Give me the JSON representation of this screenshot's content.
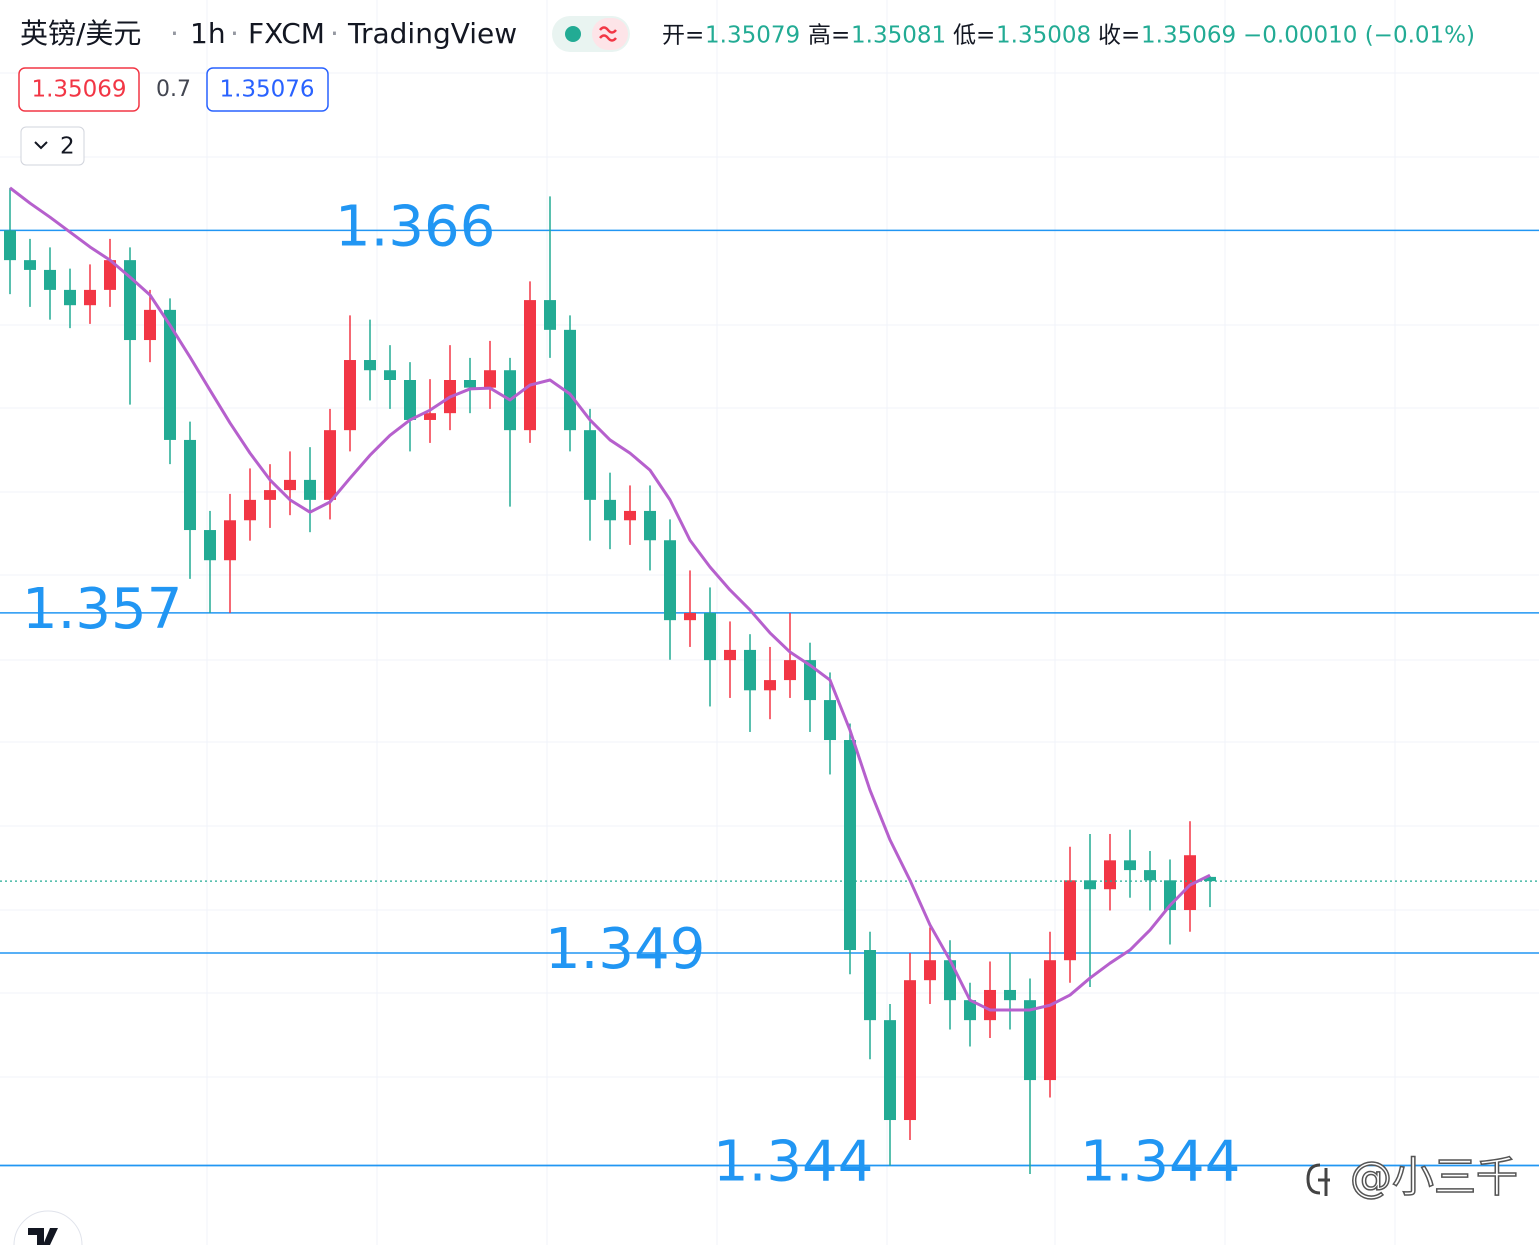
{
  "header": {
    "symbol": "英镑/美元",
    "interval": "1h",
    "exchange": "FXCM",
    "platform": "TradingView",
    "ohlc": [
      {
        "label": "开=",
        "value": "1.35079"
      },
      {
        "label": "高=",
        "value": "1.35081"
      },
      {
        "label": "低=",
        "value": "1.35008"
      },
      {
        "label": "收=",
        "value": "1.35069"
      }
    ],
    "change": "−0.00010 (−0.01%)",
    "bid": "1.35069",
    "spread": "0.7",
    "ask": "1.35076",
    "indicator_count": "2"
  },
  "watermark": "@小三千",
  "chart_data": {
    "type": "candlestick",
    "ylim": [
      1.34213,
      1.37142
    ],
    "up_color": "#f23645",
    "down_color": "#22ab94",
    "ma_color": "#b660cd",
    "level_color": "#2196f3",
    "open": [
      1.366,
      1.3653,
      1.36507,
      1.3646,
      1.36424,
      1.3646,
      1.3653,
      1.36342,
      1.36413,
      1.36107,
      1.35895,
      1.35824,
      1.35918,
      1.35966,
      1.35989,
      1.36013,
      1.35966,
      1.3613,
      1.36295,
      1.36271,
      1.36248,
      1.36154,
      1.3617,
      1.36248,
      1.3623,
      1.36271,
      1.3613,
      1.36436,
      1.36366,
      1.3613,
      1.35966,
      1.35918,
      1.3594,
      1.35871,
      1.35683,
      1.357,
      1.35589,
      1.35613,
      1.35518,
      1.35542,
      1.35589,
      1.35495,
      1.35401,
      1.34907,
      1.34742,
      1.34507,
      1.34836,
      1.34883,
      1.34789,
      1.34742,
      1.34813,
      1.34789,
      1.34601,
      1.34883,
      1.35071,
      1.3505,
      1.35118,
      1.35095,
      1.35071,
      1.35001,
      1.35079
    ],
    "high": [
      1.367,
      1.3658,
      1.3656,
      1.3651,
      1.3652,
      1.3658,
      1.3656,
      1.3646,
      1.3644,
      1.3615,
      1.3594,
      1.3598,
      1.3604,
      1.3605,
      1.3608,
      1.3609,
      1.3618,
      1.364,
      1.3639,
      1.3633,
      1.3629,
      1.3625,
      1.3633,
      1.363,
      1.3634,
      1.363,
      1.3648,
      1.3668,
      1.364,
      1.3618,
      1.3603,
      1.36,
      1.36,
      1.3592,
      1.358,
      1.3576,
      1.3568,
      1.3565,
      1.3562,
      1.357,
      1.3563,
      1.3556,
      1.3544,
      1.3495,
      1.3478,
      1.349,
      1.3496,
      1.3493,
      1.3483,
      1.3488,
      1.349,
      1.3484,
      1.3495,
      1.3515,
      1.3518,
      1.3518,
      1.3519,
      1.3514,
      1.3512,
      1.3521,
      1.35081
    ],
    "low": [
      1.3645,
      1.3642,
      1.3639,
      1.3637,
      1.3638,
      1.3642,
      1.3619,
      1.3629,
      1.3605,
      1.3578,
      1.357,
      1.357,
      1.3587,
      1.359,
      1.3593,
      1.3589,
      1.3592,
      1.3608,
      1.362,
      1.3618,
      1.3608,
      1.361,
      1.3613,
      1.3617,
      1.3618,
      1.3595,
      1.361,
      1.363,
      1.3608,
      1.3587,
      1.3585,
      1.3586,
      1.358,
      1.3559,
      1.3562,
      1.3548,
      1.355,
      1.3542,
      1.3545,
      1.355,
      1.3542,
      1.3532,
      1.3485,
      1.3465,
      1.344,
      1.3446,
      1.3478,
      1.3472,
      1.3468,
      1.347,
      1.3472,
      1.3438,
      1.3456,
      1.3483,
      1.3482,
      1.35,
      1.3503,
      1.35,
      1.3492,
      1.3495,
      1.35008
    ],
    "close": [
      1.3653,
      1.36507,
      1.3646,
      1.36424,
      1.3646,
      1.3653,
      1.36342,
      1.36413,
      1.36107,
      1.35895,
      1.35824,
      1.35918,
      1.35966,
      1.35989,
      1.36013,
      1.35966,
      1.3613,
      1.36295,
      1.36271,
      1.36248,
      1.36154,
      1.3617,
      1.36248,
      1.3623,
      1.36271,
      1.3613,
      1.36436,
      1.36366,
      1.3613,
      1.35966,
      1.35918,
      1.3594,
      1.35871,
      1.35683,
      1.357,
      1.35589,
      1.35613,
      1.35518,
      1.35542,
      1.35589,
      1.35495,
      1.35401,
      1.34907,
      1.34742,
      1.34507,
      1.34836,
      1.34883,
      1.34789,
      1.34742,
      1.34813,
      1.34789,
      1.34601,
      1.34883,
      1.35071,
      1.3505,
      1.35118,
      1.35095,
      1.35071,
      1.35001,
      1.3513,
      1.35069
    ],
    "ma": [
      1.367,
      1.36664,
      1.36631,
      1.36596,
      1.36561,
      1.3653,
      1.3649,
      1.36448,
      1.36377,
      1.36302,
      1.36224,
      1.36147,
      1.36076,
      1.36013,
      1.35966,
      1.35937,
      1.35961,
      1.36017,
      1.36071,
      1.36118,
      1.36154,
      1.36177,
      1.36208,
      1.36227,
      1.36229,
      1.36201,
      1.36236,
      1.36248,
      1.36215,
      1.36154,
      1.36107,
      1.36076,
      1.36036,
      1.35966,
      1.35871,
      1.35808,
      1.35754,
      1.35707,
      1.35653,
      1.35608,
      1.35577,
      1.35542,
      1.35424,
      1.35283,
      1.35166,
      1.35071,
      1.34966,
      1.34883,
      1.34789,
      1.34766,
      1.34766,
      1.34766,
      1.34777,
      1.34801,
      1.34841,
      1.34876,
      1.34907,
      1.34954,
      1.35012,
      1.3506,
      1.35083
    ],
    "levels": [
      1.366,
      1.357,
      1.349,
      1.344,
      1.344
    ]
  }
}
